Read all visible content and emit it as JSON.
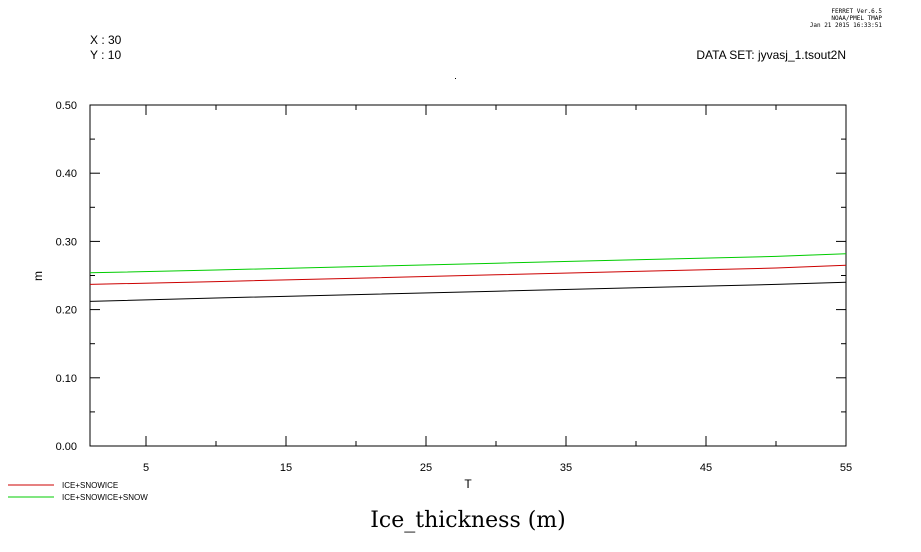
{
  "header": {
    "ferret_version": "FERRET  Ver.6.5",
    "lab": "NOAA/PMEL TMAP",
    "timestamp": "Jan 21 2015 16:33:51",
    "x_coord": "X : 30",
    "y_coord": "Y : 10",
    "dataset": "DATA SET: jyvasj_1.tsout2N"
  },
  "chart_data": {
    "type": "line",
    "title": "Ice_thickness (m)",
    "xlabel": "T",
    "ylabel": "m",
    "xlim": [
      1,
      55
    ],
    "ylim": [
      0,
      0.5
    ],
    "x_ticks": [
      5,
      15,
      25,
      35,
      45,
      55
    ],
    "x_tick_labels": [
      "5",
      "15",
      "25",
      "35",
      "45",
      "55"
    ],
    "y_ticks": [
      0,
      0.1,
      0.2,
      0.3,
      0.4,
      0.5
    ],
    "y_tick_labels": [
      "0.00",
      "0.10",
      "0.20",
      "0.30",
      "0.40",
      "0.50"
    ],
    "series": [
      {
        "color": "#000000",
        "x": [
          1,
          10,
          20,
          30,
          40,
          50,
          55
        ],
        "y": [
          0.212,
          0.217,
          0.222,
          0.227,
          0.232,
          0.237,
          0.24
        ]
      },
      {
        "name": "ICE+SNOWICE",
        "color": "#cc0000",
        "x": [
          1,
          10,
          20,
          30,
          40,
          50,
          55
        ],
        "y": [
          0.237,
          0.241,
          0.246,
          0.251,
          0.256,
          0.261,
          0.265
        ]
      },
      {
        "name": "ICE+SNOWICE+SNOW",
        "color": "#00cc00",
        "x": [
          1,
          10,
          20,
          30,
          40,
          50,
          55
        ],
        "y": [
          0.254,
          0.258,
          0.263,
          0.268,
          0.273,
          0.278,
          0.282
        ]
      }
    ]
  }
}
